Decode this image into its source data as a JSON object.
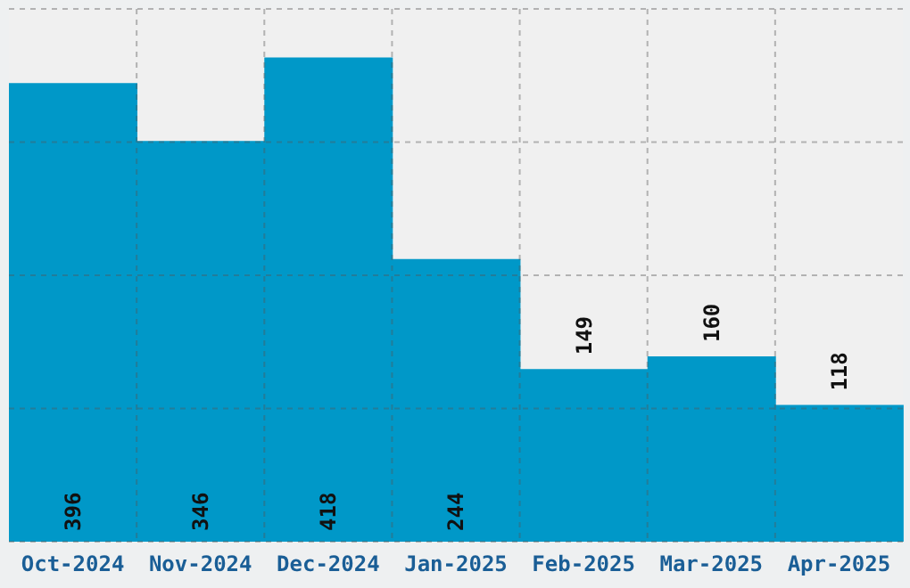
{
  "chart_data": {
    "type": "bar",
    "categories": [
      "Oct-2024",
      "Nov-2024",
      "Dec-2024",
      "Jan-2025",
      "Feb-2025",
      "Mar-2025",
      "Apr-2025"
    ],
    "values": [
      396,
      346,
      418,
      244,
      149,
      160,
      118
    ],
    "color": "#0098c8",
    "ylim": [
      0,
      460
    ],
    "yticks": [
      {
        "value": 0,
        "label": null
      },
      {
        "value": 115,
        "label": null
      },
      {
        "value": 230,
        "label": null
      },
      {
        "value": 345,
        "label": null
      },
      {
        "value": 460,
        "label": null
      }
    ],
    "tick_labels": "x",
    "grid": true,
    "data_labels": true
  }
}
